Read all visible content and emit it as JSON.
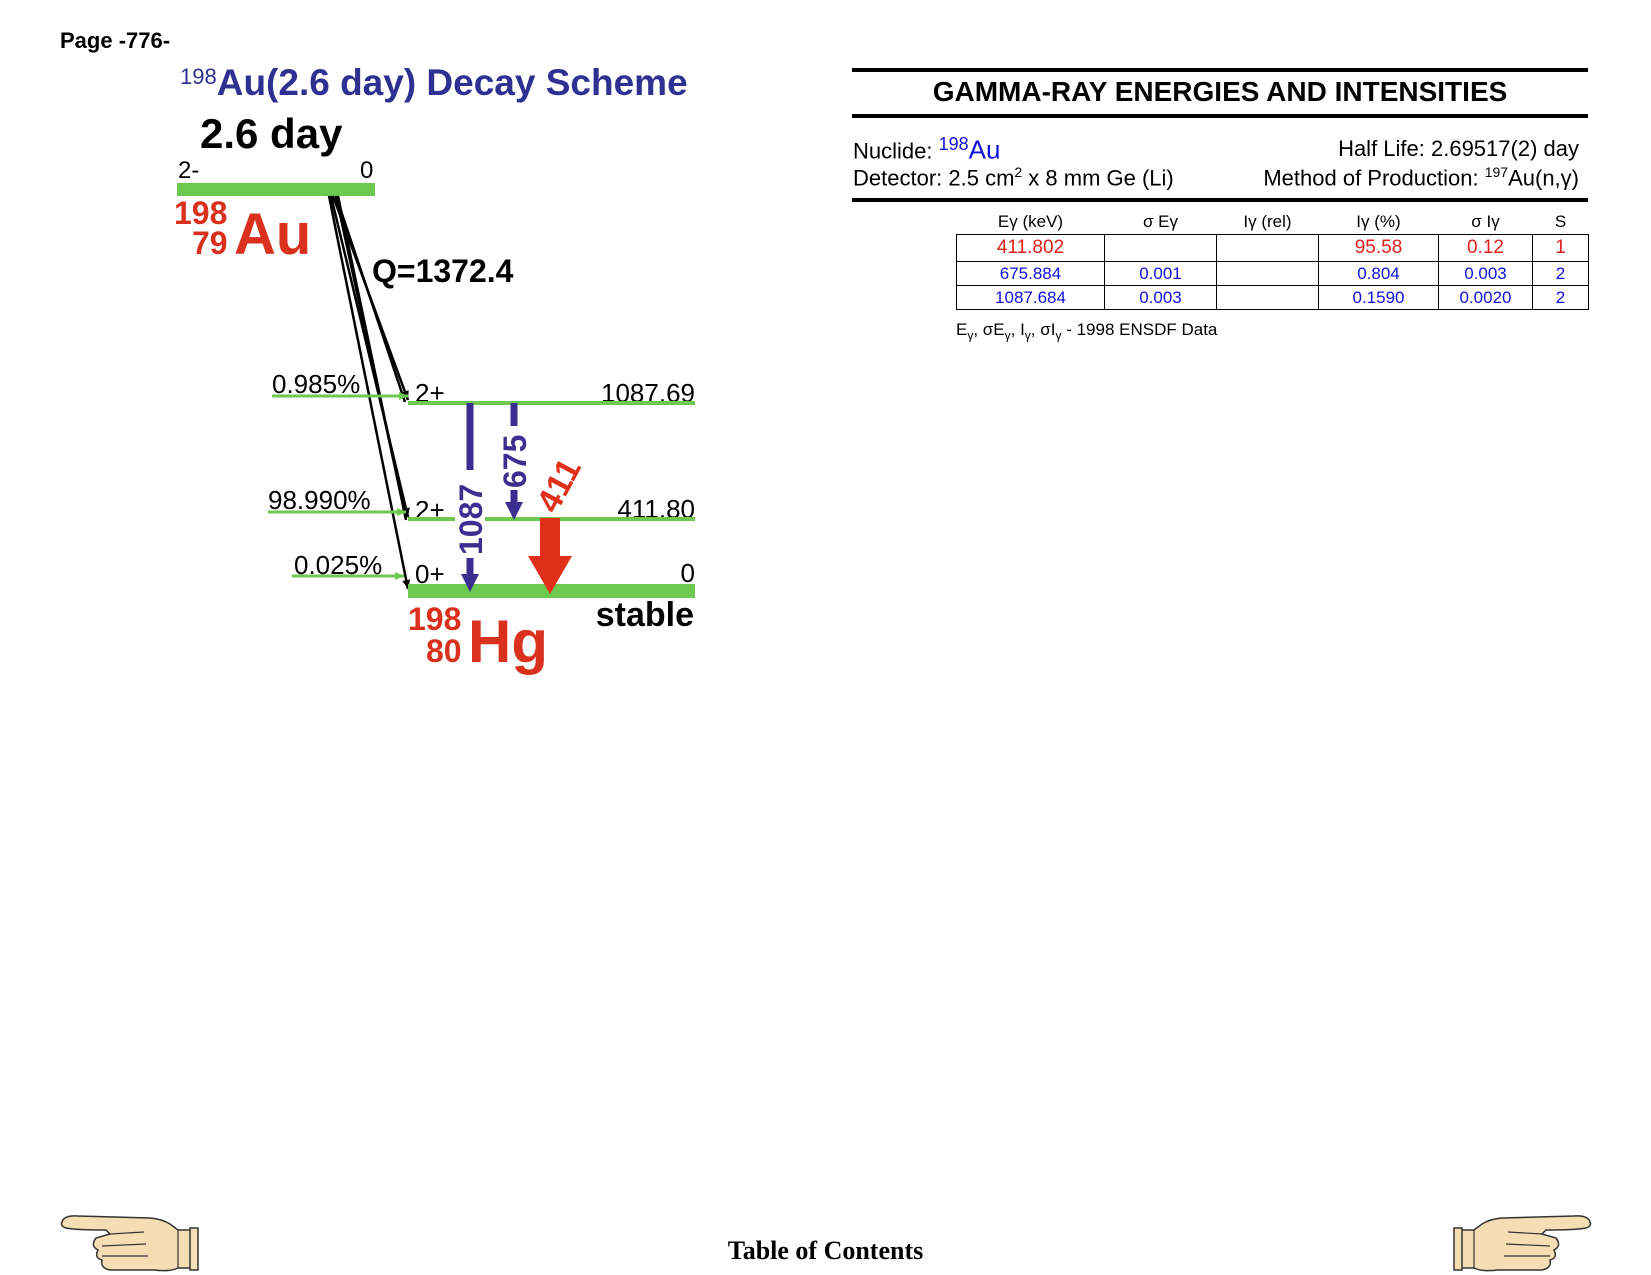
{
  "page_label": "Page -776-",
  "scheme": {
    "title_mass": "198",
    "title_text": "Au(2.6 day) Decay Scheme",
    "halflife": "2.6 day",
    "parent": {
      "spin": "2-",
      "energy": "0",
      "mass": "198",
      "z": "79",
      "symbol": "Au"
    },
    "q_value": "Q=1372.4",
    "levels": [
      {
        "spin": "2+",
        "energy": "1087.69",
        "feed": "0.985%"
      },
      {
        "spin": "2+",
        "energy": "411.80",
        "feed": "98.990%"
      },
      {
        "spin": "0+",
        "energy": "0",
        "feed": "0.025%"
      }
    ],
    "daughter": {
      "mass": "198",
      "z": "80",
      "symbol": "Hg",
      "status": "stable"
    },
    "gammas": [
      {
        "label": "1087",
        "color": "#3d2f91"
      },
      {
        "label": "675",
        "color": "#3d2f91"
      },
      {
        "label": "411",
        "color": "#e0301c"
      }
    ],
    "colors": {
      "level": "#6cc84f",
      "title": "#2e3192",
      "element": "#d9311d",
      "arrow": "#000000"
    }
  },
  "gamma_panel": {
    "title": "GAMMA-RAY ENERGIES AND INTENSITIES",
    "nuclide_label": "Nuclide: ",
    "nuclide_mass": "198",
    "nuclide_symbol": "Au",
    "half_life": "Half Life: 2.69517(2) day",
    "detector_prefix": "Detector: 2.5 cm",
    "detector_exp": "2",
    "detector_suffix": " x 8 mm Ge (Li)",
    "method_prefix": "Method of Production: ",
    "method_mass": "197",
    "method_suffix": "Au(n,γ)",
    "columns": [
      "Eγ (keV)",
      "σ Eγ",
      "Iγ (rel)",
      "Iγ (%)",
      "σ Iγ",
      "S"
    ],
    "rows": [
      [
        "411.802",
        "",
        "",
        "95.58",
        "0.12",
        "1"
      ],
      [
        "675.884",
        "0.001",
        "",
        "0.804",
        "0.003",
        "2"
      ],
      [
        "1087.684",
        "0.003",
        "",
        "0.1590",
        "0.0020",
        "2"
      ]
    ],
    "footnote_symbols": [
      "E",
      "γ",
      ", σE",
      "γ",
      ", I",
      "γ",
      ", σI",
      "γ"
    ],
    "footnote_text": " - 1998 ENSDF Data"
  },
  "nav": {
    "toc": "Table of Contents"
  }
}
